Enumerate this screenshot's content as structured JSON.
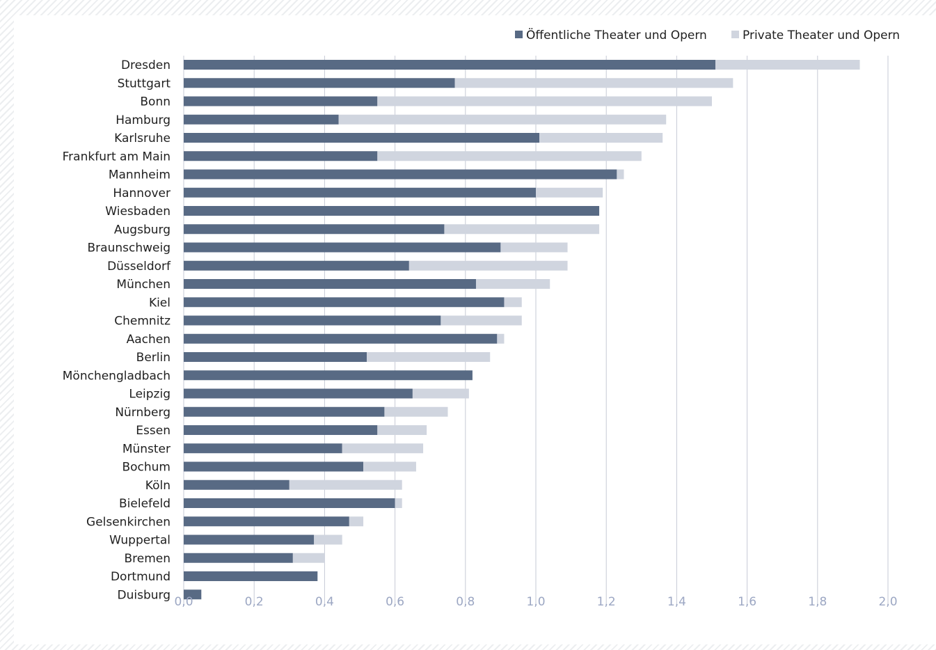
{
  "chart_data": {
    "type": "bar",
    "orientation": "horizontal",
    "stacked": true,
    "categories": [
      "Dresden",
      "Stuttgart",
      "Bonn",
      "Hamburg",
      "Karlsruhe",
      "Frankfurt am Main",
      "Mannheim",
      "Hannover",
      "Wiesbaden",
      "Augsburg",
      "Braunschweig",
      "Düsseldorf",
      "München",
      "Kiel",
      "Chemnitz",
      "Aachen",
      "Berlin",
      "Mönchengladbach",
      "Leipzig",
      "Nürnberg",
      "Essen",
      "Münster",
      "Bochum",
      "Köln",
      "Bielefeld",
      "Gelsenkirchen",
      "Wuppertal",
      "Bremen",
      "Dortmund",
      "Duisburg"
    ],
    "series": [
      {
        "name": "Öffentliche Theater und Opern",
        "color": "#586a84",
        "values": [
          1.51,
          0.77,
          0.55,
          0.44,
          1.01,
          0.55,
          1.23,
          1.0,
          1.18,
          0.74,
          0.9,
          0.64,
          0.83,
          0.91,
          0.73,
          0.89,
          0.52,
          0.82,
          0.65,
          0.57,
          0.55,
          0.45,
          0.51,
          0.3,
          0.6,
          0.47,
          0.37,
          0.31,
          0.38,
          0.05
        ]
      },
      {
        "name": "Private Theater und Opern",
        "color": "#d0d5df",
        "values": [
          0.41,
          0.79,
          0.95,
          0.93,
          0.35,
          0.75,
          0.02,
          0.19,
          0.0,
          0.44,
          0.19,
          0.45,
          0.21,
          0.05,
          0.23,
          0.02,
          0.35,
          0.0,
          0.16,
          0.18,
          0.14,
          0.23,
          0.15,
          0.32,
          0.02,
          0.04,
          0.08,
          0.09,
          0.0,
          0.0
        ]
      }
    ],
    "xlim": [
      0,
      2.0
    ],
    "xticks": [
      "0,0",
      "0,2",
      "0,4",
      "0,6",
      "0,8",
      "1,0",
      "1,2",
      "1,4",
      "1,6",
      "1,8",
      "2,0"
    ],
    "grid": true,
    "legend_position": "top-right",
    "title": "",
    "xlabel": "",
    "ylabel": ""
  }
}
